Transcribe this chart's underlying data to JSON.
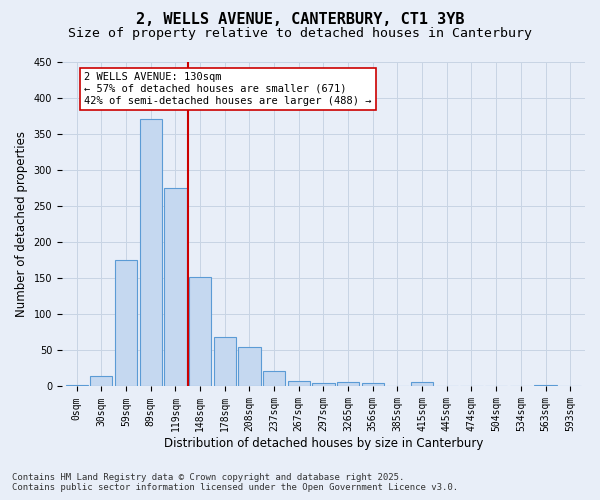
{
  "title_line1": "2, WELLS AVENUE, CANTERBURY, CT1 3YB",
  "title_line2": "Size of property relative to detached houses in Canterbury",
  "xlabel": "Distribution of detached houses by size in Canterbury",
  "ylabel": "Number of detached properties",
  "bar_labels": [
    "0sqm",
    "30sqm",
    "59sqm",
    "89sqm",
    "119sqm",
    "148sqm",
    "178sqm",
    "208sqm",
    "237sqm",
    "267sqm",
    "297sqm",
    "3265qm",
    "356sqm",
    "385sqm",
    "415sqm",
    "445sqm",
    "474sqm",
    "504sqm",
    "534sqm",
    "563sqm",
    "593sqm"
  ],
  "bar_values": [
    2,
    15,
    175,
    370,
    275,
    152,
    68,
    54,
    22,
    8,
    5,
    6,
    5,
    0,
    6,
    0,
    0,
    0,
    0,
    2,
    0
  ],
  "bar_color": "#c5d8f0",
  "bar_edge_color": "#5b9bd5",
  "grid_color": "#c8d4e4",
  "background_color": "#e8eef8",
  "ylim_max": 450,
  "yticks": [
    0,
    50,
    100,
    150,
    200,
    250,
    300,
    350,
    400,
    450
  ],
  "vline_x": 4.5,
  "vline_color": "#cc0000",
  "annotation_text": "2 WELLS AVENUE: 130sqm\n← 57% of detached houses are smaller (671)\n42% of semi-detached houses are larger (488) →",
  "annotation_box_color": "#ffffff",
  "annotation_box_edge": "#cc0000",
  "footer_line1": "Contains HM Land Registry data © Crown copyright and database right 2025.",
  "footer_line2": "Contains public sector information licensed under the Open Government Licence v3.0.",
  "title_fontsize": 11,
  "subtitle_fontsize": 9.5,
  "axis_label_fontsize": 8.5,
  "tick_fontsize": 7,
  "annotation_fontsize": 7.5,
  "footer_fontsize": 6.5
}
